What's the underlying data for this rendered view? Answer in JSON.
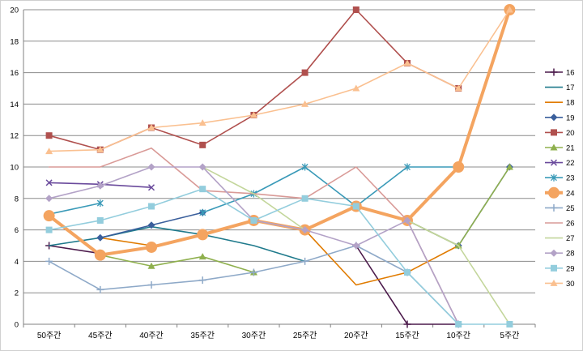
{
  "chart_data": {
    "type": "line",
    "title": "",
    "xlabel": "",
    "ylabel": "",
    "categories": [
      "50주간",
      "45주간",
      "40주간",
      "35주간",
      "30주간",
      "25주간",
      "20주간",
      "15주간",
      "10주간",
      "5주간"
    ],
    "ylim": [
      0,
      20
    ],
    "yticks": [
      0,
      2,
      4,
      6,
      8,
      10,
      12,
      14,
      16,
      18,
      20
    ],
    "grid": "horizontal",
    "legend": "right",
    "series": [
      {
        "name": "16",
        "color": "#4b1a4b",
        "marker": "plus",
        "values": [
          5,
          4.5,
          null,
          null,
          null,
          null,
          5,
          0,
          0,
          null
        ]
      },
      {
        "name": "17",
        "color": "#1f7a8c",
        "marker": "none",
        "values": [
          5,
          5.5,
          6.2,
          5.7,
          5,
          4,
          null,
          null,
          null,
          null
        ]
      },
      {
        "name": "18",
        "color": "#e07b00",
        "marker": "none",
        "values": [
          null,
          5.5,
          5,
          null,
          null,
          6,
          2.5,
          3.3,
          5,
          null
        ]
      },
      {
        "name": "19",
        "color": "#3a5f9c",
        "marker": "diamond",
        "values": [
          null,
          5.5,
          6.3,
          7.1,
          null,
          null,
          null,
          6.6,
          5,
          10
        ]
      },
      {
        "name": "20",
        "color": "#b0504e",
        "marker": "square",
        "values": [
          12,
          11.1,
          12.5,
          11.4,
          13.3,
          16,
          20,
          16.6,
          15,
          null
        ]
      },
      {
        "name": "21",
        "color": "#8fb04e",
        "marker": "triangle",
        "values": [
          null,
          4.4,
          3.7,
          4.3,
          3.3,
          null,
          null,
          6.6,
          5,
          10
        ]
      },
      {
        "name": "22",
        "color": "#6a4a9c",
        "marker": "x",
        "values": [
          9,
          8.9,
          8.7,
          null,
          null,
          null,
          null,
          null,
          null,
          null
        ]
      },
      {
        "name": "23",
        "color": "#3a9ab8",
        "marker": "star",
        "values": [
          7,
          7.7,
          null,
          7.1,
          8.3,
          10,
          7.5,
          10,
          10,
          null
        ]
      },
      {
        "name": "24",
        "color": "#f4a460",
        "marker": "circle-big",
        "values": [
          6.9,
          4.4,
          4.9,
          5.7,
          6.6,
          6,
          7.5,
          6.6,
          10,
          20
        ]
      },
      {
        "name": "25",
        "color": "#8ea9c8",
        "marker": "plus",
        "values": [
          4,
          2.2,
          2.5,
          2.8,
          3.3,
          4,
          5,
          3.3,
          0,
          null
        ]
      },
      {
        "name": "26",
        "color": "#d99a97",
        "marker": "none",
        "values": [
          10,
          10,
          11.2,
          8.5,
          8.3,
          8,
          10,
          6.6,
          0,
          null
        ]
      },
      {
        "name": "27",
        "color": "#c3d69b",
        "marker": "none",
        "values": [
          null,
          null,
          null,
          10,
          8.3,
          6,
          null,
          6.6,
          5,
          0
        ]
      },
      {
        "name": "28",
        "color": "#b3a2c7",
        "marker": "diamond",
        "values": [
          8,
          8.8,
          10,
          10,
          6.6,
          6,
          5,
          6.6,
          0,
          null
        ]
      },
      {
        "name": "29",
        "color": "#93cddd",
        "marker": "square",
        "values": [
          6,
          6.6,
          7.5,
          8.6,
          6.6,
          8,
          7.5,
          3.3,
          0,
          0
        ]
      },
      {
        "name": "30",
        "color": "#fac090",
        "marker": "triangle",
        "values": [
          11,
          11.1,
          12.5,
          12.8,
          13.3,
          14,
          15,
          16.6,
          15,
          20
        ]
      }
    ]
  }
}
